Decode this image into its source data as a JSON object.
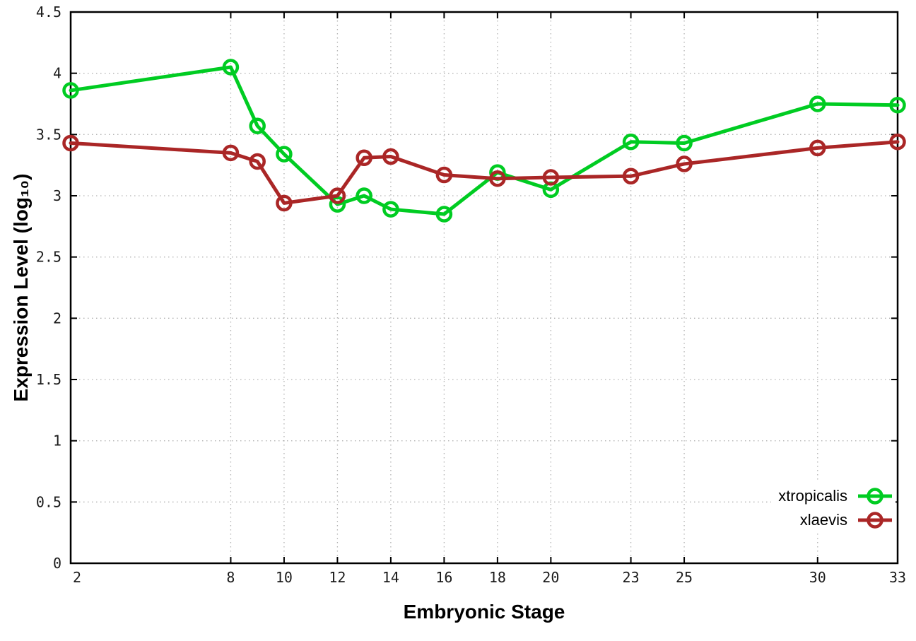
{
  "chart_data": {
    "type": "line",
    "title": "",
    "xlabel": "Embryonic Stage",
    "ylabel": "Expression Level (log₁₀)",
    "xlim": [
      2,
      33
    ],
    "ylim": [
      0,
      4.5
    ],
    "grid": "dotted",
    "legend_position": "bottom-right",
    "x": [
      2,
      8,
      9,
      10,
      12,
      13,
      14,
      16,
      18,
      20,
      23,
      25,
      30,
      33
    ],
    "x_tick_values": [
      2,
      8,
      10,
      12,
      14,
      16,
      18,
      20,
      23,
      25,
      30,
      33
    ],
    "x_tick_labels": [
      "2",
      "8",
      "10",
      "12",
      "14",
      "16",
      "18",
      "20",
      "23",
      "25",
      "30",
      "33"
    ],
    "y_tick_values": [
      0,
      0.5,
      1,
      1.5,
      2,
      2.5,
      3,
      3.5,
      4,
      4.5
    ],
    "y_tick_labels": [
      "0",
      "0.5",
      "1",
      "1.5",
      "2",
      "2.5",
      "3",
      "3.5",
      "4",
      "4.5"
    ],
    "series": [
      {
        "name": "xtropicalis",
        "color": "#00cc22",
        "values": [
          3.86,
          4.05,
          3.57,
          3.34,
          2.93,
          3.0,
          2.89,
          2.85,
          3.19,
          3.05,
          3.44,
          3.43,
          3.75,
          3.74
        ]
      },
      {
        "name": "xlaevis",
        "color": "#aa2626",
        "values": [
          3.43,
          3.35,
          3.28,
          2.94,
          3.0,
          3.31,
          3.32,
          3.17,
          3.14,
          3.15,
          3.16,
          3.26,
          3.39,
          3.44
        ]
      }
    ],
    "colors": {
      "border": "#000000",
      "grid": "#b3b3b3",
      "tick_text": "#1a1a1a"
    }
  }
}
